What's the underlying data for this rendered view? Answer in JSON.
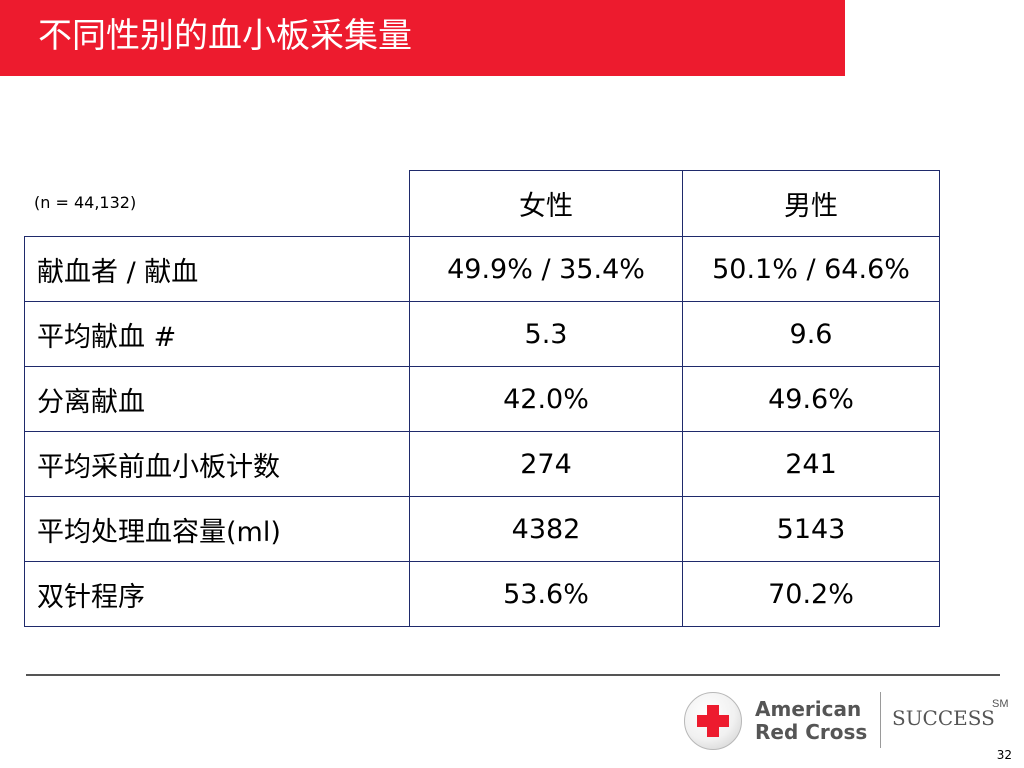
{
  "slide": {
    "title": "不同性别的血小板采集量",
    "page_number": "32"
  },
  "table": {
    "sample_note": "(n = 44,132)",
    "columns": [
      "女性",
      "男性"
    ],
    "rows": [
      {
        "label": "献血者 / 献血",
        "female": "49.9% / 35.4%",
        "male": "50.1% / 64.6%"
      },
      {
        "label": "平均献血 #",
        "female": "5.3",
        "male": "9.6"
      },
      {
        "label": "分离献血",
        "female": "42.0%",
        "male": "49.6%"
      },
      {
        "label": "平均采前血小板计数",
        "female": "274",
        "male": "241"
      },
      {
        "label": "平均处理血容量(ml)",
        "female": "4382",
        "male": "5143"
      },
      {
        "label": "双针程序",
        "female": "53.6%",
        "male": "70.2%"
      }
    ]
  },
  "footer": {
    "org_line_1": "American",
    "org_line_2": "Red Cross",
    "program": "SUCCESS",
    "service_mark": "SM"
  },
  "colors": {
    "brand_red": "#ed1b2e",
    "table_border": "#1f2a6b",
    "logo_gray": "#555555"
  }
}
